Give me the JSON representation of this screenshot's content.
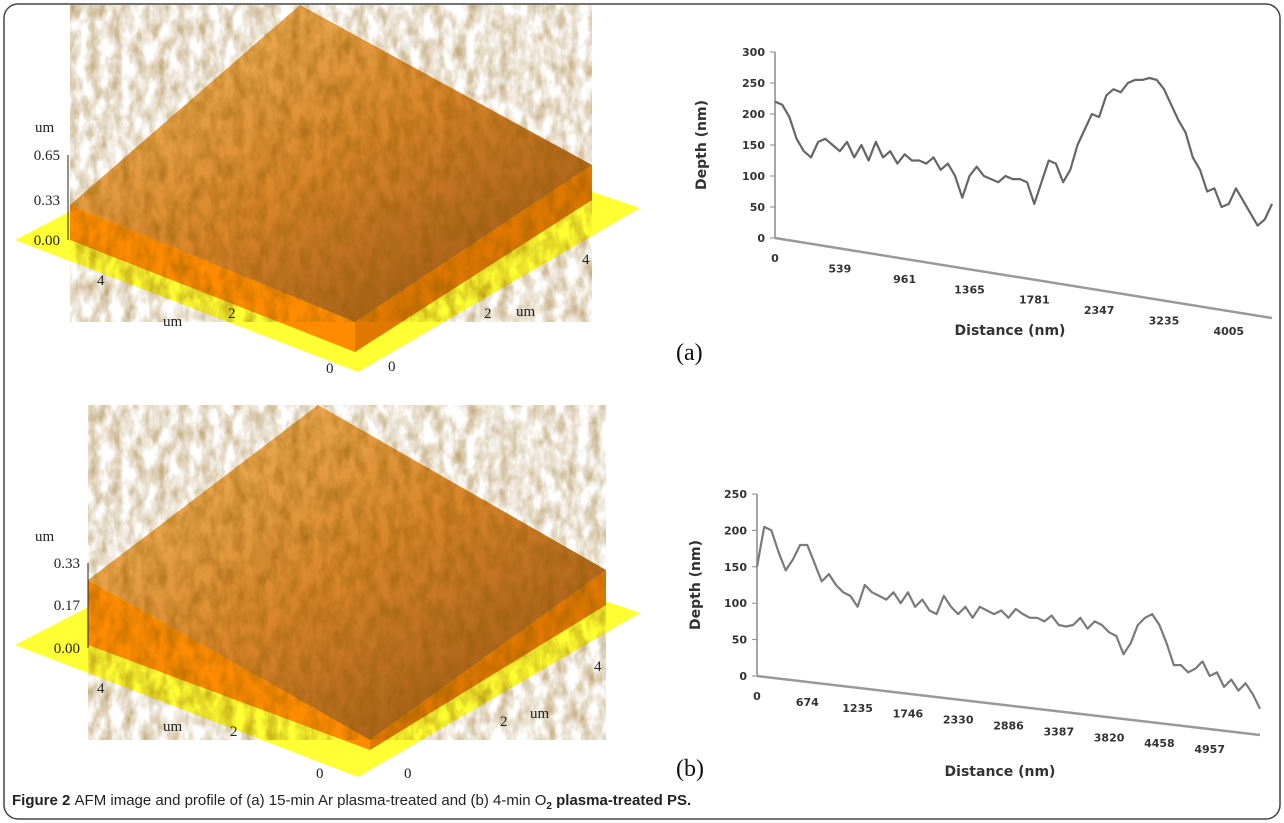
{
  "caption": {
    "label": "Figure 2",
    "text": "AFM image and profile of (a) 15-min Ar plasma-treated and (b) 4-min O",
    "subscript": "2",
    "text_end": " plasma-treated PS."
  },
  "panel_labels": [
    "(a)",
    "(b)"
  ],
  "afm_images": [
    {
      "z_unit": "um",
      "z_ticks": [
        "0.65",
        "0.33",
        "0.00"
      ],
      "left_ticks": [
        "4",
        "2",
        "0"
      ],
      "left_unit": "um",
      "right_ticks": [
        "0",
        "2",
        "4"
      ],
      "right_unit": "um"
    },
    {
      "z_unit": "um",
      "z_ticks": [
        "0.33",
        "0.17",
        "0.00"
      ],
      "left_ticks": [
        "4",
        "2",
        "0"
      ],
      "left_unit": "um",
      "right_ticks": [
        "0",
        "2",
        "4"
      ],
      "right_unit": "um"
    }
  ],
  "chart_data": [
    {
      "type": "line",
      "y_label": "Depth (nm)",
      "x_label": "Distance (nm)",
      "ylim": [
        0,
        300
      ],
      "yticks": [
        0,
        50,
        100,
        150,
        200,
        250,
        300
      ],
      "categories": [
        "0",
        null,
        null,
        null,
        null,
        null,
        null,
        null,
        null,
        "539",
        null,
        null,
        null,
        null,
        null,
        null,
        null,
        null,
        "961",
        null,
        null,
        null,
        null,
        null,
        null,
        null,
        null,
        "1365",
        null,
        null,
        null,
        null,
        null,
        null,
        null,
        null,
        "1781",
        null,
        null,
        null,
        null,
        null,
        null,
        null,
        null,
        "2347",
        null,
        null,
        null,
        null,
        null,
        null,
        null,
        null,
        "3235",
        null,
        null,
        null,
        null,
        null,
        null,
        null,
        null,
        "4005",
        null,
        null,
        null,
        null,
        null,
        null
      ],
      "series": [
        {
          "color": "#666666",
          "values": [
            220,
            215,
            195,
            160,
            140,
            130,
            155,
            160,
            150,
            140,
            155,
            130,
            150,
            125,
            155,
            130,
            140,
            120,
            135,
            125,
            125,
            120,
            130,
            110,
            120,
            100,
            65,
            100,
            115,
            100,
            95,
            90,
            100,
            95,
            95,
            90,
            55,
            90,
            125,
            120,
            90,
            110,
            150,
            175,
            200,
            195,
            230,
            240,
            235,
            250,
            255,
            255,
            258,
            255,
            240,
            215,
            190,
            170,
            130,
            110,
            75,
            80,
            50,
            55,
            80,
            60,
            40,
            20,
            30,
            55
          ]
        }
      ]
    },
    {
      "type": "line",
      "y_label": "Depth (nm)",
      "x_label": "Distance (nm)",
      "ylim": [
        0,
        250
      ],
      "yticks": [
        0,
        50,
        100,
        150,
        200,
        250
      ],
      "categories": [
        "0",
        null,
        null,
        null,
        null,
        null,
        null,
        "674",
        null,
        null,
        null,
        null,
        null,
        null,
        "1235",
        null,
        null,
        null,
        null,
        null,
        null,
        "1746",
        null,
        null,
        null,
        null,
        null,
        null,
        "2330",
        null,
        null,
        null,
        null,
        null,
        null,
        "2886",
        null,
        null,
        null,
        null,
        null,
        null,
        "3387",
        null,
        null,
        null,
        null,
        null,
        null,
        "3820",
        null,
        null,
        null,
        null,
        null,
        null,
        "4458",
        null,
        null,
        null,
        null,
        null,
        null,
        "4957",
        null,
        null,
        null,
        null,
        null,
        null,
        null
      ],
      "series": [
        {
          "color": "#7a7a7a",
          "values": [
            150,
            205,
            200,
            170,
            145,
            160,
            180,
            180,
            155,
            130,
            140,
            125,
            115,
            110,
            95,
            125,
            115,
            110,
            105,
            115,
            100,
            115,
            95,
            105,
            90,
            85,
            110,
            95,
            85,
            95,
            80,
            95,
            90,
            85,
            90,
            80,
            92,
            85,
            80,
            80,
            75,
            83,
            70,
            68,
            70,
            80,
            65,
            75,
            70,
            60,
            55,
            30,
            45,
            70,
            80,
            85,
            70,
            45,
            15,
            15,
            5,
            10,
            20,
            0,
            5,
            -15,
            -5,
            -20,
            -10,
            -25,
            -45
          ]
        }
      ]
    }
  ]
}
